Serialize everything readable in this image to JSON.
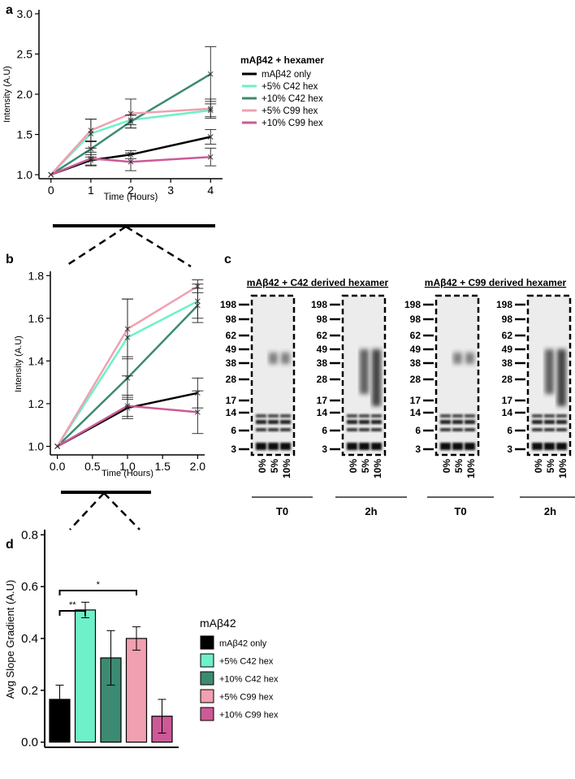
{
  "panels": {
    "a": "a",
    "b": "b",
    "c": "c",
    "d": "d"
  },
  "chart_data": [
    {
      "id": "a",
      "type": "line",
      "xlabel": "Time (Hours)",
      "ylabel": "Intensity (A.U)",
      "xlim": [
        -0.3,
        4.3
      ],
      "ylim": [
        0.95,
        3.05
      ],
      "xticks": [
        0,
        1,
        2,
        3,
        4
      ],
      "yticks": [
        1.0,
        1.5,
        2.0,
        2.5,
        3.0
      ],
      "ytick_labels": [
        "1.0",
        "1.5",
        "2.0",
        "2.5",
        "3.0"
      ],
      "legend_title": "mAβ42 + hexamer",
      "x": [
        0,
        1,
        2,
        4
      ],
      "series": [
        {
          "name": "mAβ42 only",
          "color": "#000000",
          "values": [
            1.0,
            1.18,
            1.25,
            1.47
          ],
          "err": [
            0,
            0.07,
            0.05,
            0.09
          ]
        },
        {
          "name": "+5% C42 hex",
          "color": "#6ef0c8",
          "values": [
            1.0,
            1.51,
            1.68,
            1.8
          ],
          "err": [
            0,
            0.18,
            0.06,
            0.08
          ]
        },
        {
          "name": "+10% C42 hex",
          "color": "#3d8a72",
          "values": [
            1.0,
            1.32,
            1.66,
            2.25
          ],
          "err": [
            0,
            0.1,
            0.08,
            0.34
          ]
        },
        {
          "name": "+5% C99 hex",
          "color": "#f0a0b0",
          "values": [
            1.0,
            1.55,
            1.76,
            1.82
          ],
          "err": [
            0,
            0.14,
            0.18,
            0.12
          ]
        },
        {
          "name": "+10% C99 hex",
          "color": "#cc5a96",
          "values": [
            1.0,
            1.2,
            1.16,
            1.22
          ],
          "err": [
            0,
            0.08,
            0.11,
            0.11
          ]
        }
      ]
    },
    {
      "id": "b",
      "type": "line",
      "xlabel": "Time (Hours)",
      "ylabel": "Intensity (A.U)",
      "xlim": [
        -0.1,
        2.1
      ],
      "ylim": [
        0.96,
        1.82
      ],
      "xticks": [
        0.0,
        0.5,
        1.0,
        1.5,
        2.0
      ],
      "xtick_labels": [
        "0.0",
        "0.5",
        "1.0",
        "1.5",
        "2.0"
      ],
      "yticks": [
        1.0,
        1.2,
        1.4,
        1.6,
        1.8
      ],
      "ytick_labels": [
        "1.0",
        "1.2",
        "1.4",
        "1.6",
        "1.8"
      ],
      "x": [
        0,
        1,
        2
      ],
      "series": [
        {
          "name": "mAβ42 only",
          "color": "#000000",
          "values": [
            1.0,
            1.18,
            1.25
          ],
          "err": [
            0,
            0.05,
            0.07
          ]
        },
        {
          "name": "+5% C42 hex",
          "color": "#6ef0c8",
          "values": [
            1.0,
            1.51,
            1.68
          ],
          "err": [
            0,
            0.18,
            0.08
          ]
        },
        {
          "name": "+10% C42 hex",
          "color": "#3d8a72",
          "values": [
            1.0,
            1.32,
            1.66
          ],
          "err": [
            0,
            0.1,
            0.08
          ]
        },
        {
          "name": "+5% C99 hex",
          "color": "#f0a0b0",
          "values": [
            1.0,
            1.55,
            1.75
          ],
          "err": [
            0,
            0.14,
            0.03
          ]
        },
        {
          "name": "+10% C99 hex",
          "color": "#cc5a96",
          "values": [
            1.0,
            1.19,
            1.16
          ],
          "err": [
            0,
            0.05,
            0.1
          ]
        }
      ]
    },
    {
      "id": "d",
      "type": "bar",
      "ylabel": "Avg Slope Gradient (A.U)",
      "ylim": [
        -0.02,
        0.82
      ],
      "yticks": [
        0.0,
        0.2,
        0.4,
        0.6,
        0.8
      ],
      "ytick_labels": [
        "0.0",
        "0.2",
        "0.4",
        "0.6",
        "0.8"
      ],
      "legend_title": "mAβ42",
      "categories": [
        "mAβ42 only",
        "+5% C42 hex",
        "+10% C42 hex",
        "+5% C99 hex",
        "+10% C99 hex"
      ],
      "values": [
        0.165,
        0.51,
        0.325,
        0.4,
        0.1
      ],
      "err": [
        0.055,
        0.03,
        0.105,
        0.045,
        0.065
      ],
      "colors": [
        "#000000",
        "#6ef0c8",
        "#3d8a72",
        "#f0a0b0",
        "#cc5a96"
      ],
      "significance": [
        {
          "from": 0,
          "to": 1,
          "label": "**"
        },
        {
          "from": 0,
          "to": 3,
          "label": "*"
        }
      ]
    }
  ],
  "gel": {
    "titles": [
      "mAβ42 + C42 derived hexamer",
      "mAβ42 + C99 derived hexamer"
    ],
    "mw_markers": [
      "198",
      "98",
      "62",
      "49",
      "38",
      "28",
      "17",
      "14",
      "6",
      "3"
    ],
    "lanes": [
      "0%",
      "5%",
      "10%"
    ],
    "timepoints": [
      "T0",
      "2h",
      "T0",
      "2h"
    ]
  }
}
